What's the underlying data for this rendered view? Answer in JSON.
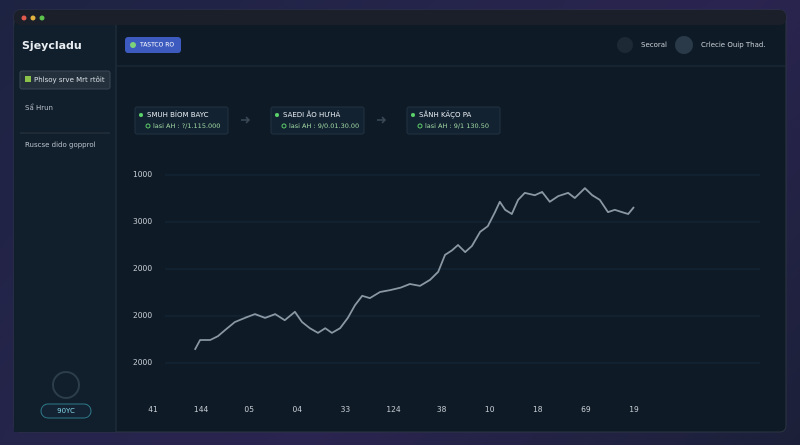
{
  "app": {
    "brand": "Sjeycladu",
    "top_button": "TASTCO RO",
    "top_right": [
      "Secoral",
      "Crlecie Ouip Thad."
    ],
    "sidebar": {
      "active": "Phlsoy srve Mrt rtôit",
      "items": [
        "Sẩ Hrun",
        "Ruscse dido gopprol"
      ],
      "badge": "90YC"
    },
    "cards": [
      {
        "title": "SMUH BÍOM BAYC",
        "detail": "lasi AH : ?/1.115.000"
      },
      {
        "title": "SAEDI ÅO HƯHÁ",
        "detail": "lasi AH : 9/0.01.30.00"
      },
      {
        "title": "SÅNH KÄÇO PA",
        "detail": "lasi AH : 9/1 130.50"
      }
    ]
  },
  "chart_data": {
    "type": "line",
    "color": "#8a98a4",
    "grid": true,
    "xlim": [
      0,
      10
    ],
    "ylim": [
      0,
      4
    ],
    "xticks": [
      {
        "value": 0,
        "label": "41"
      },
      {
        "value": 1,
        "label": "144"
      },
      {
        "value": 2,
        "label": "05"
      },
      {
        "value": 3,
        "label": "04"
      },
      {
        "value": 4,
        "label": "33"
      },
      {
        "value": 5,
        "label": "124"
      },
      {
        "value": 6,
        "label": "38"
      },
      {
        "value": 7,
        "label": "10"
      },
      {
        "value": 8,
        "label": "18"
      },
      {
        "value": 9,
        "label": "69"
      },
      {
        "value": 10,
        "label": "19"
      }
    ],
    "yticks": [
      {
        "value": 4,
        "label": "1000"
      },
      {
        "value": 3,
        "label": "3000"
      },
      {
        "value": 2,
        "label": "2000"
      },
      {
        "value": 1,
        "label": "2000"
      },
      {
        "value": 0,
        "label": "2000"
      }
    ],
    "x": [
      0.87,
      0.98,
      1.19,
      1.35,
      1.5,
      1.7,
      1.91,
      2.12,
      2.33,
      2.54,
      2.74,
      2.95,
      3.1,
      3.26,
      3.43,
      3.58,
      3.72,
      3.89,
      4.05,
      4.2,
      4.35,
      4.51,
      4.72,
      4.93,
      5.14,
      5.34,
      5.55,
      5.76,
      5.93,
      6.07,
      6.22,
      6.34,
      6.49,
      6.63,
      6.8,
      6.96,
      7.11,
      7.21,
      7.32,
      7.46,
      7.59,
      7.73,
      7.94,
      8.09,
      8.25,
      8.42,
      8.63,
      8.77,
      8.98,
      9.13,
      9.29,
      9.46,
      9.6,
      9.75,
      9.88,
      10
    ],
    "values": [
      0.28,
      0.49,
      0.49,
      0.57,
      0.7,
      0.87,
      0.96,
      1.04,
      0.96,
      1.04,
      0.91,
      1.09,
      0.87,
      0.74,
      0.64,
      0.74,
      0.64,
      0.74,
      0.96,
      1.23,
      1.43,
      1.38,
      1.51,
      1.55,
      1.6,
      1.68,
      1.64,
      1.77,
      1.94,
      2.3,
      2.4,
      2.51,
      2.36,
      2.49,
      2.79,
      2.91,
      3.21,
      3.43,
      3.26,
      3.17,
      3.47,
      3.62,
      3.57,
      3.64,
      3.43,
      3.55,
      3.62,
      3.51,
      3.72,
      3.57,
      3.47,
      3.21,
      3.26,
      3.21,
      3.17,
      3.32
    ]
  }
}
